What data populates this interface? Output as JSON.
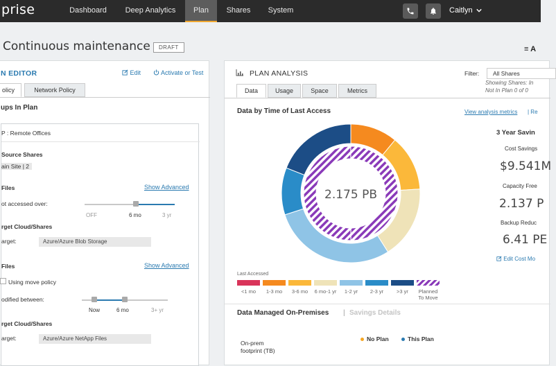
{
  "nav": {
    "brand": "prise",
    "items": [
      "Dashboard",
      "Deep Analytics",
      "Plan",
      "Shares",
      "System"
    ],
    "active": "Plan",
    "user": "Caitlyn"
  },
  "header": {
    "title": "Continuous maintenance",
    "badge": "DRAFT",
    "menu_label": "≡ A"
  },
  "editor": {
    "title": "N EDITOR",
    "edit_link": "Edit",
    "activate_link": "Activate or Test",
    "tabs": [
      "olicy",
      "Network Policy"
    ],
    "groups_heading": "ups In Plan",
    "group_name": "P : Remote Offices",
    "source_shares_label": "Source Shares",
    "source_shares_value": "ain Site | 2",
    "files_section_1": {
      "label": "Files",
      "show_advanced": "Show Advanced",
      "criteria": "ot accessed over:",
      "slider_ticks": [
        "OFF",
        "6 mo",
        "3 yr"
      ],
      "slider_value": "6 mo",
      "target_heading": "rget Cloud/Shares",
      "target_label": "arget:",
      "target_value": "Azure/Azure Blob Storage"
    },
    "files_section_2": {
      "label": "Files",
      "show_advanced": "Show Advanced",
      "checkbox_label": "Using move policy",
      "criteria": "odified between:",
      "slider_ticks": [
        "Now",
        "6 mo",
        "3+ yr"
      ],
      "target_heading": "rget Cloud/Shares",
      "target_label": "arget:",
      "target_value": "Azure/Azure NetApp Files"
    }
  },
  "analysis": {
    "title": "PLAN ANALYSIS",
    "filter_label": "Filter:",
    "filter_value": "All Shares",
    "showing_line1": "Showing Shares: In",
    "showing_line2": "Not In Plan 0 of 0",
    "tabs": [
      "Data",
      "Usage",
      "Space",
      "Metrics"
    ],
    "active_tab": "Data",
    "chart_heading": "Data by Time of Last Access",
    "view_metrics_link": "View analysis metrics",
    "re_link": "| Re",
    "center_value": "2.175 PB",
    "legend_title": "Last Accessed",
    "savings": {
      "heading": "3 Year Savin",
      "cost_savings_label": "Cost Savings",
      "cost_savings_value": "$9.541M",
      "capacity_label": "Capacity Free",
      "capacity_value": "2.137 P",
      "backup_label": "Backup Reduc",
      "backup_value": "6.41 PE",
      "edit_link": "Edit Cost Mo"
    },
    "on_prem": {
      "heading": "Data Managed On-Premises",
      "separator": "|",
      "savings_details": "Savings Details",
      "legend_no_plan": "No Plan",
      "legend_this_plan": "This Plan",
      "row_label_1": "On-prem",
      "row_label_2": "footprint (TB)",
      "colors": {
        "no_plan": "#f5a623",
        "this_plan": "#2a7ab0"
      }
    }
  },
  "chart_data": {
    "type": "pie",
    "title": "Data by Time of Last Access",
    "center_label": "2.175 PB",
    "legend_title": "Last Accessed",
    "categories": [
      "<1 mo",
      "1-3 mo",
      "3-6 mo",
      "6 mo-1 yr",
      "1-2 yr",
      "2-3 yr",
      ">3 yr",
      "Planned To Move"
    ],
    "colors": [
      "#d9345a",
      "#f58a1f",
      "#fbb83a",
      "#efe3b8",
      "#8fc4e6",
      "#2a8cc8",
      "#1c4d86",
      "#8a3ab9"
    ],
    "outer_ring": [
      0,
      11,
      13,
      17,
      29,
      11,
      19,
      0
    ],
    "inner_ring": [
      0,
      0,
      0,
      0,
      0,
      0,
      0,
      100
    ]
  }
}
